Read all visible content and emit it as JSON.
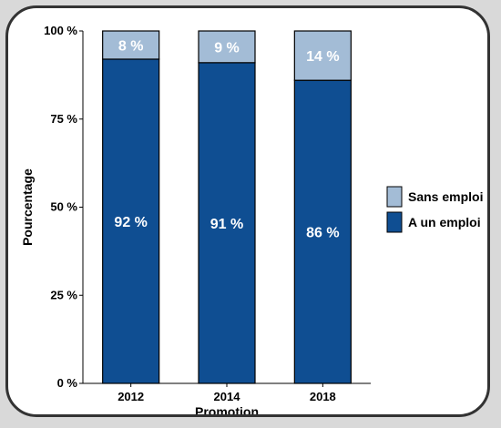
{
  "chart_data": {
    "type": "bar",
    "stacked": true,
    "categories": [
      "2012",
      "2014",
      "2018"
    ],
    "series": [
      {
        "name": "A un emploi",
        "values": [
          92,
          91,
          86
        ],
        "labels": [
          "92 %",
          "91 %",
          "86 %"
        ],
        "color": "#0f4e92"
      },
      {
        "name": "Sans emploi",
        "values": [
          8,
          9,
          14
        ],
        "labels": [
          "8 %",
          "9 %",
          "14 %"
        ],
        "color": "#a3bcd6"
      }
    ],
    "xlabel": "Promotion",
    "ylabel": "Pourcentage",
    "ylim": [
      0,
      100
    ],
    "yticks": [
      0,
      25,
      50,
      75,
      100
    ],
    "ytick_labels": [
      "0 %",
      "25 %",
      "50 %",
      "75 %",
      "100 %"
    ],
    "legend": {
      "position": "right",
      "items": [
        "Sans emploi",
        "A un emploi"
      ]
    },
    "grid": false,
    "colors": {
      "frame_border": "#333333",
      "background": "#d9d9d9",
      "bar_edge": "#000000"
    }
  }
}
